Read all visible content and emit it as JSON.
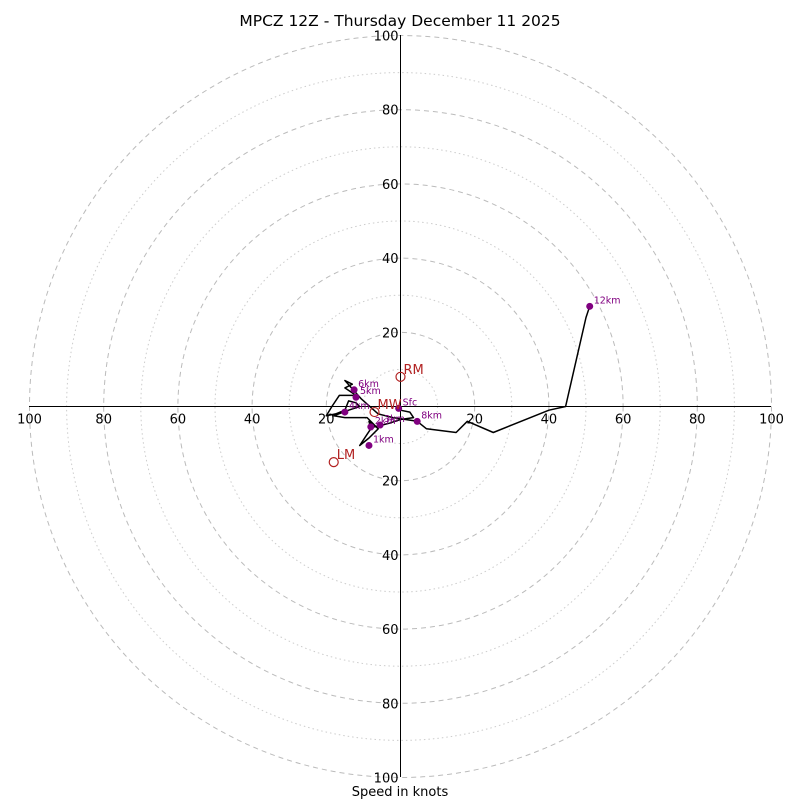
{
  "chart_data": {
    "type": "hodograph",
    "title": "MPCZ 12Z - Thursday December 11 2025",
    "xlabel": "Speed in knots",
    "units": "knots",
    "max_speed": 100,
    "ring_step_major": 20,
    "ring_step_minor": 10,
    "ticks": {
      "x_left": [
        "100",
        "80",
        "60",
        "40",
        "20"
      ],
      "x_right": [
        "20",
        "40",
        "60",
        "80",
        "100"
      ],
      "y_top": [
        "100",
        "80",
        "60",
        "40",
        "20"
      ],
      "y_bottom": [
        "20",
        "40",
        "60",
        "80",
        "100"
      ]
    },
    "tick_values": [
      100,
      80,
      60,
      40,
      20
    ],
    "trace": [
      [
        0,
        -1
      ],
      [
        2.5,
        -1.5
      ],
      [
        3.5,
        -3
      ],
      [
        0,
        -3.5
      ],
      [
        -3,
        -4.5
      ],
      [
        -5,
        -5
      ],
      [
        -7,
        -5.5
      ],
      [
        -8.5,
        -4
      ],
      [
        -8,
        -6
      ],
      [
        -9,
        -7.5
      ],
      [
        -11,
        -10.5
      ],
      [
        -8.5,
        -8.5
      ],
      [
        -6,
        -6
      ],
      [
        -9,
        -3
      ],
      [
        -15,
        -3
      ],
      [
        -18,
        -2.5
      ],
      [
        -14,
        -1
      ],
      [
        -11,
        0
      ],
      [
        -12,
        1
      ],
      [
        -14,
        1.5
      ],
      [
        -15,
        -1
      ],
      [
        -17.5,
        -2
      ],
      [
        -20,
        -2.5
      ],
      [
        -18.5,
        0
      ],
      [
        -16.5,
        3
      ],
      [
        -12,
        3
      ],
      [
        -15,
        5
      ],
      [
        -13,
        6
      ],
      [
        -15,
        7
      ],
      [
        -10.5,
        2
      ],
      [
        -6,
        -2
      ],
      [
        -2,
        -3
      ],
      [
        4.5,
        -4
      ],
      [
        7,
        -6
      ],
      [
        15,
        -7
      ],
      [
        18,
        -4
      ],
      [
        25,
        -7
      ],
      [
        40,
        -1
      ],
      [
        44.5,
        0
      ],
      [
        50,
        24
      ],
      [
        51,
        27
      ]
    ],
    "height_markers": [
      {
        "label": "Sfc",
        "u": -0.5,
        "v": -0.5
      },
      {
        "label": "1km",
        "u": -8.5,
        "v": -10.5
      },
      {
        "label": "2km",
        "u": -8,
        "v": -5.5
      },
      {
        "label": "3km",
        "u": -5.5,
        "v": -5
      },
      {
        "label": "4km",
        "u": -15,
        "v": -1.5
      },
      {
        "label": "5km",
        "u": -12,
        "v": 2.5
      },
      {
        "label": "6km",
        "u": -12.5,
        "v": 4.5
      },
      {
        "label": "8km",
        "u": 4.5,
        "v": -4
      },
      {
        "label": "12km",
        "u": 51,
        "v": 27
      }
    ],
    "motion_markers": [
      {
        "label": "RM",
        "u": 0,
        "v": 8
      },
      {
        "label": "LM",
        "u": -18,
        "v": -15
      },
      {
        "label": "MW",
        "u": -7,
        "v": -1.5
      }
    ],
    "colors": {
      "trace": "#000000",
      "height_markers": "#800080",
      "motion_markers": "#b22222",
      "ring_major": "#bbbbbb",
      "ring_minor": "#cccccc"
    }
  }
}
